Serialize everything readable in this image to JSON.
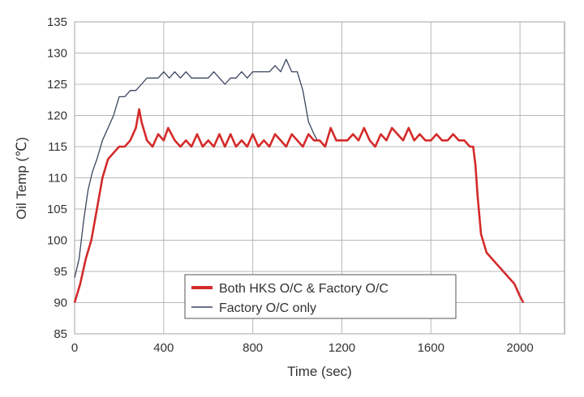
{
  "chart_data": {
    "type": "line",
    "title": "",
    "xlabel": "Time (sec)",
    "ylabel": "Oil Temp (℃)",
    "xlim": [
      0,
      2200
    ],
    "ylim": [
      85,
      135
    ],
    "x_ticks": [
      0,
      400,
      800,
      1200,
      1600,
      2000
    ],
    "x_tick_labels": [
      "0",
      "400",
      "800",
      "1200",
      "1600",
      "2000"
    ],
    "y_ticks": [
      85,
      90,
      95,
      100,
      105,
      110,
      115,
      120,
      125,
      130,
      135
    ],
    "y_tick_labels": [
      "85",
      "90",
      "95",
      "100",
      "105",
      "110",
      "115",
      "120",
      "125",
      "130",
      "135"
    ],
    "grid": true,
    "legend_position": "bottom-center",
    "series": [
      {
        "name": "Both HKS O/C & Factory O/C",
        "color": "#d42a2a",
        "x": [
          0,
          25,
          50,
          75,
          100,
          125,
          150,
          175,
          200,
          225,
          250,
          275,
          290,
          300,
          325,
          350,
          375,
          400,
          420,
          450,
          475,
          500,
          525,
          550,
          575,
          600,
          625,
          650,
          675,
          700,
          725,
          750,
          775,
          800,
          825,
          850,
          875,
          900,
          925,
          950,
          975,
          1000,
          1025,
          1050,
          1075,
          1100,
          1125,
          1150,
          1175,
          1200,
          1225,
          1250,
          1275,
          1300,
          1325,
          1350,
          1375,
          1400,
          1425,
          1450,
          1475,
          1500,
          1525,
          1550,
          1575,
          1600,
          1625,
          1650,
          1675,
          1700,
          1725,
          1750,
          1775,
          1790,
          1800,
          1810,
          1825,
          1850,
          1875,
          1900,
          1925,
          1950,
          1975,
          2000,
          2015
        ],
        "y": [
          90,
          93,
          97,
          100,
          105,
          110,
          113,
          114,
          115,
          115,
          116,
          118,
          121,
          119,
          116,
          115,
          117,
          116,
          118,
          116,
          115,
          116,
          115,
          117,
          115,
          116,
          115,
          117,
          115,
          117,
          115,
          116,
          115,
          117,
          115,
          116,
          115,
          117,
          116,
          115,
          117,
          116,
          115,
          117,
          116,
          116,
          115,
          118,
          116,
          116,
          116,
          117,
          116,
          118,
          116,
          115,
          117,
          116,
          118,
          117,
          116,
          118,
          116,
          117,
          116,
          116,
          117,
          116,
          116,
          117,
          116,
          116,
          115,
          115,
          112,
          107,
          101,
          98,
          97,
          96,
          95,
          94,
          93,
          91,
          90
        ]
      },
      {
        "name": "Factory O/C only",
        "color": "#3a4560",
        "x": [
          0,
          20,
          40,
          60,
          80,
          100,
          125,
          150,
          175,
          200,
          225,
          250,
          275,
          300,
          325,
          350,
          375,
          400,
          425,
          450,
          475,
          500,
          525,
          550,
          575,
          600,
          625,
          650,
          675,
          700,
          725,
          750,
          775,
          800,
          825,
          850,
          875,
          900,
          925,
          950,
          975,
          1000,
          1025,
          1050,
          1075,
          1090
        ],
        "y": [
          94,
          97,
          103,
          108,
          111,
          113,
          116,
          118,
          120,
          123,
          123,
          124,
          124,
          125,
          126,
          126,
          126,
          127,
          126,
          127,
          126,
          127,
          126,
          126,
          126,
          126,
          127,
          126,
          125,
          126,
          126,
          127,
          126,
          127,
          127,
          127,
          127,
          128,
          127,
          129,
          127,
          127,
          124,
          119,
          117,
          116
        ]
      }
    ]
  }
}
